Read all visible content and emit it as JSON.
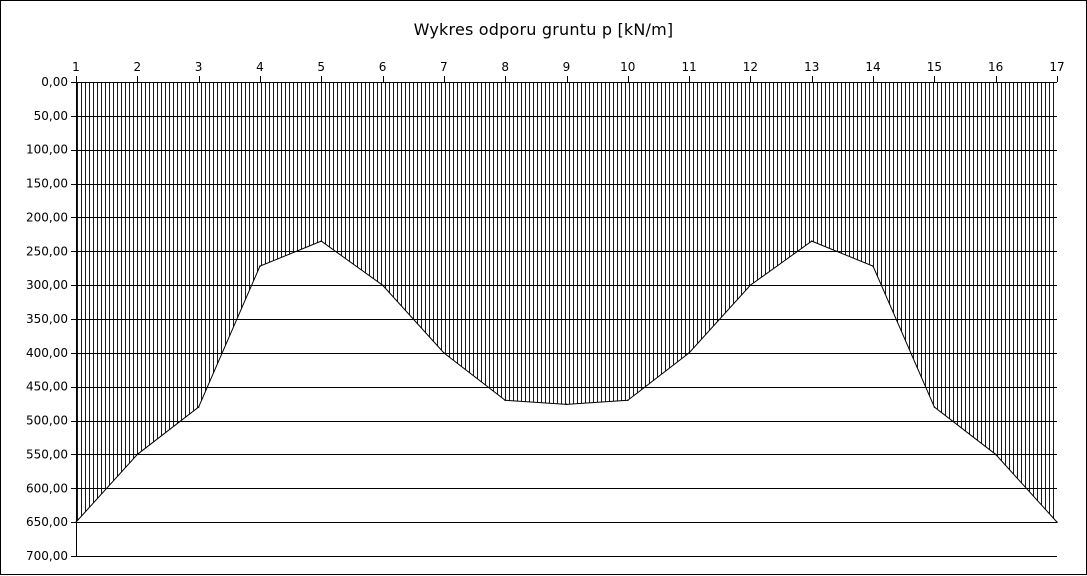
{
  "chart_data": {
    "type": "area",
    "title": "Wykres odporu gruntu p [kN/m]",
    "x_axis": {
      "position": "top",
      "categories": [
        "1",
        "2",
        "3",
        "4",
        "5",
        "6",
        "7",
        "8",
        "9",
        "10",
        "11",
        "12",
        "13",
        "14",
        "15",
        "16",
        "17"
      ]
    },
    "y_axis": {
      "reversed": true,
      "ylim": [
        0,
        700
      ],
      "step": 50,
      "tick_labels": [
        "0,00",
        "50,00",
        "100,00",
        "150,00",
        "200,00",
        "250,00",
        "300,00",
        "350,00",
        "400,00",
        "450,00",
        "500,00",
        "550,00",
        "600,00",
        "650,00",
        "700,00"
      ]
    },
    "grid": true,
    "series": [
      {
        "values": [
          650,
          550,
          480,
          272,
          235,
          300,
          400,
          470,
          476,
          470,
          400,
          300,
          235,
          272,
          480,
          550,
          650
        ],
        "fill": "vertical-hatch",
        "line_color": "#000000"
      }
    ],
    "colors": {
      "background": "#ffffff",
      "line": "#000000",
      "grid": "#000000"
    }
  }
}
